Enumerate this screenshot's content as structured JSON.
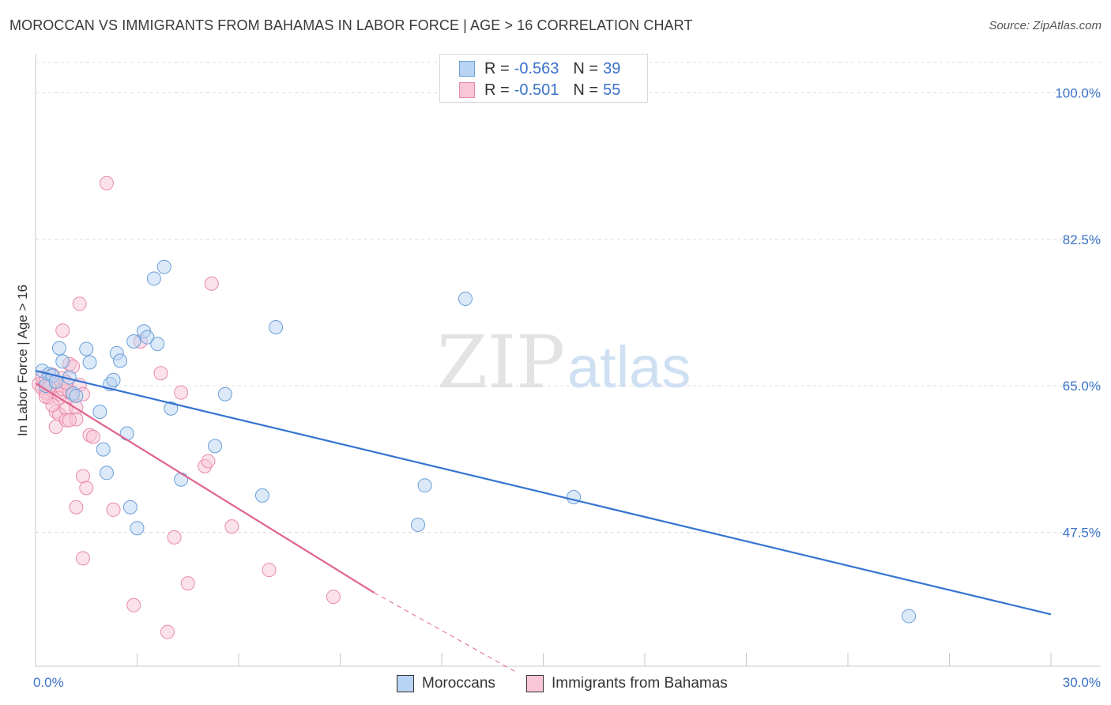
{
  "title": "MOROCCAN VS IMMIGRANTS FROM BAHAMAS IN LABOR FORCE | AGE > 16 CORRELATION CHART",
  "source": "Source: ZipAtlas.com",
  "watermark": {
    "zip": "ZIP",
    "atlas": "atlas"
  },
  "stats": {
    "moroccans": {
      "r_label": "R =",
      "r_value": "-0.563",
      "n_label": "N =",
      "n_value": "39"
    },
    "bahamas": {
      "r_label": "R =",
      "r_value": "-0.501",
      "n_label": "N =",
      "n_value": "55"
    }
  },
  "legend": {
    "moroccans": "Moroccans",
    "bahamas": "Immigrants from Bahamas"
  },
  "colors": {
    "blue_fill": "#b9d3f2",
    "blue_stroke": "#6a9fd8",
    "blue_line": "#3574d0",
    "pink_fill": "#f8c6d6",
    "pink_stroke": "#e88aaa",
    "pink_line": "#e0648e",
    "tick_text": "#3a72c8",
    "grid": "#dcdcdc"
  },
  "chart_data": {
    "type": "scatter",
    "title": "MOROCCAN VS IMMIGRANTS FROM BAHAMAS IN LABOR FORCE | AGE > 16 CORRELATION CHART",
    "xlabel": "",
    "ylabel": "In Labor Force | Age > 16",
    "xlim": [
      0,
      30
    ],
    "ylim": [
      31.5,
      104
    ],
    "x_tick_labels": [
      "0.0%",
      "30.0%"
    ],
    "y_ticks": [
      47.5,
      65.0,
      82.5,
      100.0
    ],
    "y_tick_labels": [
      "47.5%",
      "65.0%",
      "82.5%",
      "100.0%"
    ],
    "grid": true,
    "series": [
      {
        "name": "Moroccans",
        "color": "blue",
        "points": [
          [
            0.2,
            66.8
          ],
          [
            0.4,
            66.4
          ],
          [
            0.5,
            66.2
          ],
          [
            0.7,
            69.5
          ],
          [
            0.8,
            67.9
          ],
          [
            1.0,
            66.0
          ],
          [
            1.1,
            64.1
          ],
          [
            1.2,
            63.8
          ],
          [
            1.5,
            69.4
          ],
          [
            1.6,
            67.8
          ],
          [
            1.9,
            61.9
          ],
          [
            2.0,
            57.4
          ],
          [
            2.1,
            54.6
          ],
          [
            2.2,
            65.2
          ],
          [
            2.3,
            65.7
          ],
          [
            2.4,
            68.9
          ],
          [
            2.5,
            68.0
          ],
          [
            2.7,
            59.3
          ],
          [
            2.8,
            50.5
          ],
          [
            2.9,
            70.3
          ],
          [
            3.0,
            48.0
          ],
          [
            3.2,
            71.5
          ],
          [
            3.3,
            70.8
          ],
          [
            3.5,
            77.8
          ],
          [
            3.6,
            70.0
          ],
          [
            3.8,
            79.2
          ],
          [
            4.0,
            62.3
          ],
          [
            4.3,
            53.8
          ],
          [
            5.3,
            57.8
          ],
          [
            5.6,
            64.0
          ],
          [
            6.7,
            51.9
          ],
          [
            7.1,
            72.0
          ],
          [
            11.3,
            48.4
          ],
          [
            11.5,
            53.1
          ],
          [
            12.7,
            75.4
          ],
          [
            15.9,
            51.7
          ],
          [
            25.8,
            37.5
          ],
          [
            0.3,
            65.0
          ],
          [
            0.6,
            65.5
          ]
        ]
      },
      {
        "name": "Immigrants from Bahamas",
        "color": "pink",
        "points": [
          [
            0.1,
            65.2
          ],
          [
            0.2,
            64.7
          ],
          [
            0.2,
            66.0
          ],
          [
            0.3,
            64.2
          ],
          [
            0.3,
            65.6
          ],
          [
            0.4,
            64.9
          ],
          [
            0.4,
            63.6
          ],
          [
            0.5,
            66.3
          ],
          [
            0.5,
            64.4
          ],
          [
            0.6,
            65.1
          ],
          [
            0.6,
            61.9
          ],
          [
            0.7,
            64.0
          ],
          [
            0.7,
            63.5
          ],
          [
            0.7,
            61.6
          ],
          [
            0.8,
            65.9
          ],
          [
            0.8,
            64.6
          ],
          [
            0.9,
            62.3
          ],
          [
            0.9,
            60.9
          ],
          [
            1.0,
            67.6
          ],
          [
            1.0,
            64.3
          ],
          [
            1.1,
            67.3
          ],
          [
            1.1,
            63.9
          ],
          [
            1.2,
            62.4
          ],
          [
            1.2,
            61.0
          ],
          [
            1.3,
            65.1
          ],
          [
            1.4,
            64.0
          ],
          [
            1.4,
            54.2
          ],
          [
            1.5,
            52.8
          ],
          [
            1.6,
            59.1
          ],
          [
            1.7,
            58.9
          ],
          [
            1.2,
            50.5
          ],
          [
            1.4,
            44.4
          ],
          [
            2.1,
            89.2
          ],
          [
            2.3,
            50.2
          ],
          [
            2.9,
            38.8
          ],
          [
            3.1,
            70.3
          ],
          [
            3.7,
            66.5
          ],
          [
            3.9,
            35.6
          ],
          [
            4.1,
            46.9
          ],
          [
            4.3,
            64.2
          ],
          [
            4.5,
            41.4
          ],
          [
            5.0,
            55.4
          ],
          [
            5.1,
            56.0
          ],
          [
            5.2,
            77.2
          ],
          [
            5.8,
            48.2
          ],
          [
            6.9,
            43.0
          ],
          [
            8.8,
            39.8
          ],
          [
            1.3,
            74.8
          ],
          [
            0.8,
            71.6
          ],
          [
            0.4,
            64.8
          ],
          [
            0.5,
            62.7
          ],
          [
            0.3,
            63.7
          ],
          [
            0.6,
            60.1
          ],
          [
            0.9,
            65.4
          ],
          [
            1.0,
            60.9
          ]
        ]
      }
    ],
    "trend_lines": [
      {
        "series": "Moroccans",
        "from": [
          0.0,
          66.8
        ],
        "to": [
          30.0,
          37.7
        ],
        "style": "solid"
      },
      {
        "series": "Immigrants from Bahamas",
        "from": [
          0.0,
          65.3
        ],
        "to": [
          10.0,
          40.3
        ],
        "style": "solid"
      },
      {
        "series": "Immigrants from Bahamas",
        "from": [
          10.0,
          40.3
        ],
        "to": [
          14.2,
          30.8
        ],
        "style": "dashed"
      }
    ]
  }
}
